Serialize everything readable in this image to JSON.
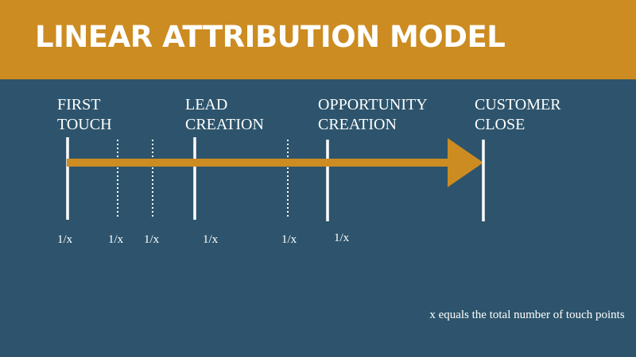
{
  "title": "LINEAR ATTRIBUTION MODEL",
  "colors": {
    "header_bg": "#cc8c21",
    "body_bg": "#2d546c",
    "arrow": "#cc8c21",
    "text": "#ffffff"
  },
  "stages": [
    {
      "line1": "FIRST",
      "line2": "TOUCH"
    },
    {
      "line1": "LEAD",
      "line2": "CREATION"
    },
    {
      "line1": "OPPORTUNITY",
      "line2": "CREATION"
    },
    {
      "line1": "CUSTOMER",
      "line2": "CLOSE"
    }
  ],
  "touch_weights": [
    "1/x",
    "1/x",
    "1/x",
    "1/x",
    "1/x",
    "1/x"
  ],
  "footnote": "x equals the total number of touch points"
}
